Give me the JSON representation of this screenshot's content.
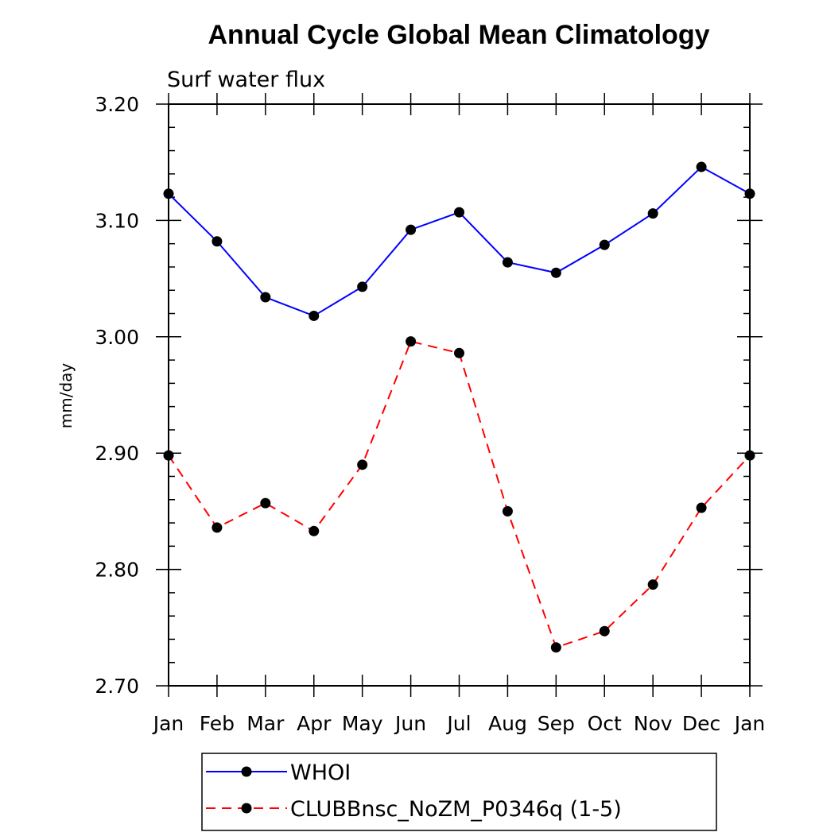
{
  "chart_data": {
    "type": "line",
    "title": "Annual Cycle Global Mean Climatology",
    "subtitle": "Surf water flux",
    "xlabel": "",
    "ylabel": "mm/day",
    "categories": [
      "Jan",
      "Feb",
      "Mar",
      "Apr",
      "May",
      "Jun",
      "Jul",
      "Aug",
      "Sep",
      "Oct",
      "Nov",
      "Dec",
      "Jan"
    ],
    "ylim": [
      2.7,
      3.2
    ],
    "yticks": [
      "2.70",
      "2.80",
      "2.90",
      "3.00",
      "3.10",
      "3.20"
    ],
    "grid": false,
    "legend_position": "bottom",
    "series": [
      {
        "name": "WHOI",
        "color": "#0000ff",
        "line_style": "solid",
        "marker": "filled-circle",
        "values": [
          3.123,
          3.082,
          3.034,
          3.018,
          3.043,
          3.092,
          3.107,
          3.064,
          3.055,
          3.079,
          3.106,
          3.146,
          3.123
        ]
      },
      {
        "name": "CLUBBnsc_NoZM_P0346q (1-5)",
        "color": "#ff0000",
        "line_style": "dashed",
        "marker": "filled-circle",
        "values": [
          2.898,
          2.836,
          2.857,
          2.833,
          2.89,
          2.996,
          2.986,
          2.85,
          2.733,
          2.747,
          2.787,
          2.853,
          2.898
        ]
      }
    ]
  }
}
